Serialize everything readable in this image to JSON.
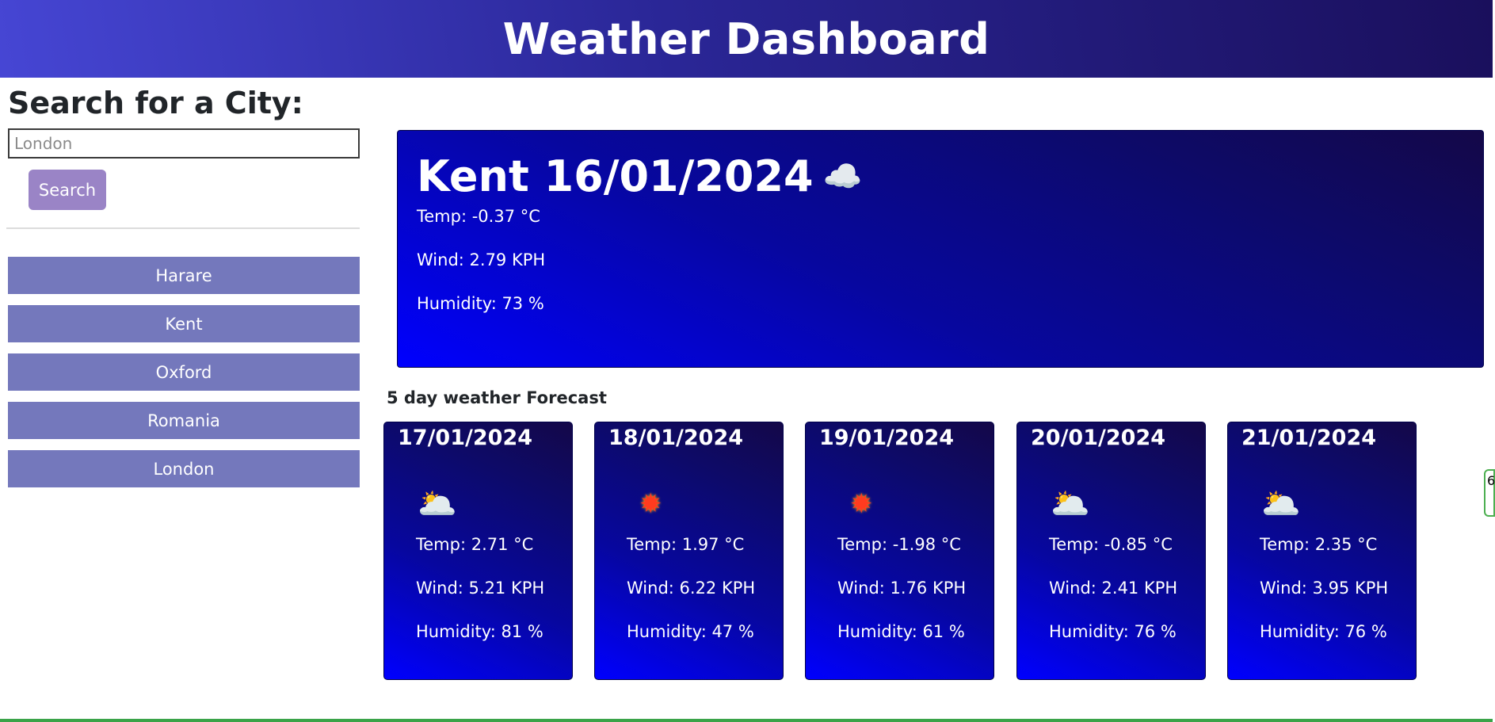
{
  "header": {
    "title": "Weather Dashboard"
  },
  "search": {
    "heading": "Search for a City:",
    "placeholder": "London",
    "button_label": "Search"
  },
  "history": [
    "Harare",
    "Kent",
    "Oxford",
    "Romania",
    "London"
  ],
  "current": {
    "title": "Kent 16/01/2024",
    "icon": "cloud-icon",
    "temp": "Temp: -0.37 °C",
    "wind": "Wind: 2.79 KPH",
    "humidity": "Humidity: 73 %"
  },
  "forecast": {
    "heading": "5 day weather Forecast",
    "days": [
      {
        "date": "17/01/2024",
        "icon": "cloudy-icon",
        "temp": "Temp: 2.71 °C",
        "wind": "Wind: 5.21 KPH",
        "humidity": "Humidity: 81 %"
      },
      {
        "date": "18/01/2024",
        "icon": "sun-icon",
        "temp": "Temp: 1.97 °C",
        "wind": "Wind: 6.22 KPH",
        "humidity": "Humidity: 47 %"
      },
      {
        "date": "19/01/2024",
        "icon": "sun-icon",
        "temp": "Temp: -1.98 °C",
        "wind": "Wind: 1.76 KPH",
        "humidity": "Humidity: 61 %"
      },
      {
        "date": "20/01/2024",
        "icon": "cloudy-icon",
        "temp": "Temp: -0.85 °C",
        "wind": "Wind: 2.41 KPH",
        "humidity": "Humidity: 76 %"
      },
      {
        "date": "21/01/2024",
        "icon": "cloudy-icon",
        "temp": "Temp: 2.35 °C",
        "wind": "Wind: 3.95 KPH",
        "humidity": "Humidity: 76 %"
      }
    ]
  },
  "edge_badge": {
    "text": "6"
  },
  "colors": {
    "history_button": "#7478bc",
    "search_button": "#9a84c6",
    "card_gradient_start": "#0000ff",
    "card_gradient_end": "#140848"
  }
}
